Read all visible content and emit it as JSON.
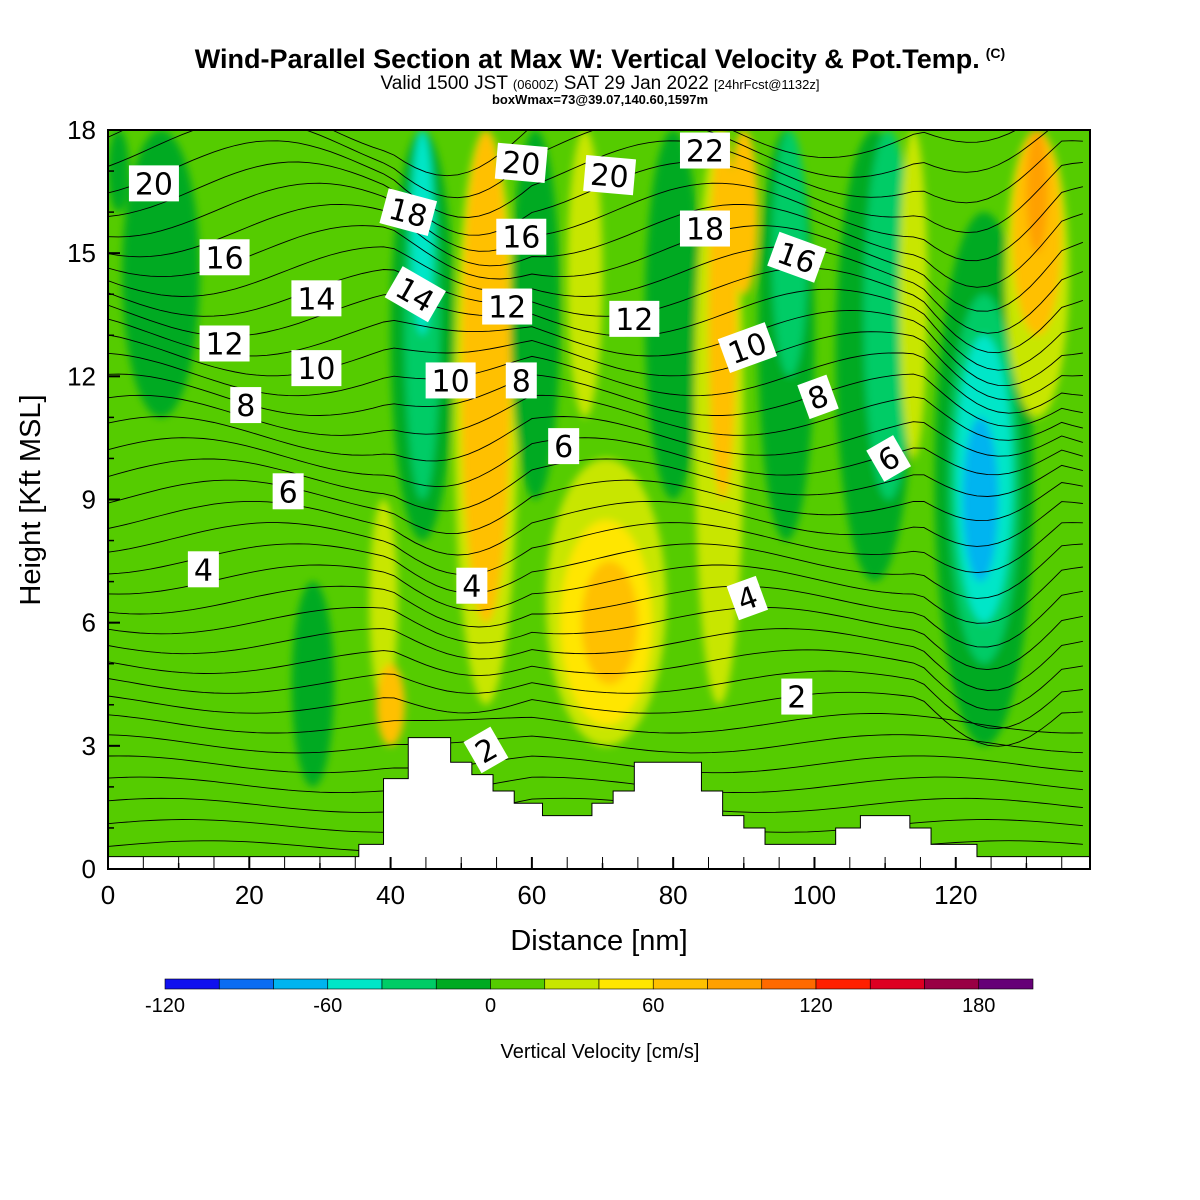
{
  "header": {
    "title": "Wind-Parallel Section at Max W: Vertical Velocity & Pot.Temp.",
    "copyright": "(C)",
    "valid_prefix": "Valid 1500 JST",
    "valid_utc": "(0600Z)",
    "valid_date": "SAT 29 Jan 2022",
    "forecast": "[24hrFcst@1132z]",
    "boxwmax": "boxWmax=73@39.07,140.60,1597m"
  },
  "chart_data": {
    "type": "heatmap",
    "xlabel": "Distance [nm]",
    "ylabel": "Height [Kft MSL]",
    "xlim": [
      0,
      139
    ],
    "ylim": [
      0,
      18
    ],
    "x_ticks": [
      0,
      20,
      40,
      60,
      80,
      100,
      120
    ],
    "y_ticks": [
      0,
      3,
      6,
      9,
      12,
      15,
      18
    ],
    "x_tick_labels": [
      "0",
      "20",
      "40",
      "60",
      "80",
      "100",
      "120"
    ],
    "y_tick_labels": [
      "0",
      "3",
      "6",
      "9",
      "12",
      "15",
      "18"
    ],
    "colorbar": {
      "label": "Vertical Velocity [cm/s]",
      "range": [
        -120,
        200
      ],
      "step": 20,
      "tick_values": [
        -120,
        -60,
        0,
        60,
        120,
        180
      ],
      "tick_labels": [
        "-120",
        "-60",
        "0",
        "60",
        "120",
        "180"
      ],
      "colors": [
        "#1010ee",
        "#0a6cf2",
        "#00b4f0",
        "#00e6c8",
        "#00cc66",
        "#00aa22",
        "#55cc00",
        "#c8e600",
        "#ffe600",
        "#ffc000",
        "#ffa000",
        "#ff6a00",
        "#ff2000",
        "#dd0022",
        "#990044",
        "#660077"
      ]
    },
    "vertical_velocity_cells": [
      {
        "x": [
          0,
          3
        ],
        "y": [
          16,
          18
        ],
        "w": -10
      },
      {
        "x": [
          2,
          13
        ],
        "y": [
          11,
          18
        ],
        "w": -10
      },
      {
        "x": [
          26,
          32
        ],
        "y": [
          2,
          7
        ],
        "w": -10
      },
      {
        "x": [
          37,
          41
        ],
        "y": [
          4,
          9
        ],
        "w": 30
      },
      {
        "x": [
          38,
          42
        ],
        "y": [
          3,
          5
        ],
        "w": 60
      },
      {
        "x": [
          40,
          49
        ],
        "y": [
          8,
          18
        ],
        "w": -10
      },
      {
        "x": [
          42,
          47
        ],
        "y": [
          9,
          18
        ],
        "w": -30
      },
      {
        "x": [
          43,
          46
        ],
        "y": [
          13,
          18
        ],
        "w": -50
      },
      {
        "x": [
          49,
          58
        ],
        "y": [
          4,
          18
        ],
        "w": 30
      },
      {
        "x": [
          50,
          57
        ],
        "y": [
          6,
          18
        ],
        "w": 60
      },
      {
        "x": [
          51,
          56
        ],
        "y": [
          10,
          18
        ],
        "w": 70
      },
      {
        "x": [
          57,
          64
        ],
        "y": [
          9,
          18
        ],
        "w": -10
      },
      {
        "x": [
          62,
          79
        ],
        "y": [
          3,
          10
        ],
        "w": 30
      },
      {
        "x": [
          64,
          77
        ],
        "y": [
          3.5,
          8.5
        ],
        "w": 50
      },
      {
        "x": [
          67,
          75
        ],
        "y": [
          4.5,
          7.5
        ],
        "w": 70
      },
      {
        "x": [
          65,
          70
        ],
        "y": [
          11,
          18
        ],
        "w": 30
      },
      {
        "x": [
          76,
          84
        ],
        "y": [
          9,
          18
        ],
        "w": -10
      },
      {
        "x": [
          83,
          90
        ],
        "y": [
          4,
          18
        ],
        "w": 30
      },
      {
        "x": [
          85,
          89
        ],
        "y": [
          9,
          18
        ],
        "w": 60
      },
      {
        "x": [
          88,
          92
        ],
        "y": [
          14,
          18
        ],
        "w": 70
      },
      {
        "x": [
          92,
          100
        ],
        "y": [
          8,
          18
        ],
        "w": -10
      },
      {
        "x": [
          94,
          99
        ],
        "y": [
          12,
          18
        ],
        "w": -30
      },
      {
        "x": [
          103,
          114
        ],
        "y": [
          7,
          18
        ],
        "w": -10
      },
      {
        "x": [
          107,
          114
        ],
        "y": [
          9,
          18
        ],
        "w": -30
      },
      {
        "x": [
          112,
          116
        ],
        "y": [
          10,
          18
        ],
        "w": 30
      },
      {
        "x": [
          117,
          131
        ],
        "y": [
          3,
          16
        ],
        "w": -10
      },
      {
        "x": [
          119,
          129
        ],
        "y": [
          5,
          14
        ],
        "w": -30
      },
      {
        "x": [
          120,
          128
        ],
        "y": [
          6,
          13
        ],
        "w": -50
      },
      {
        "x": [
          121,
          126
        ],
        "y": [
          7,
          11
        ],
        "w": -70
      },
      {
        "x": [
          127,
          136
        ],
        "y": [
          11,
          18
        ],
        "w": 30
      },
      {
        "x": [
          128,
          135
        ],
        "y": [
          13,
          18
        ],
        "w": 60
      },
      {
        "x": [
          130,
          133
        ],
        "y": [
          15,
          18
        ],
        "w": 80
      }
    ],
    "theta_contour_labels": [
      {
        "text": "20",
        "x": 6.5,
        "y": 16.7,
        "angle": 0
      },
      {
        "text": "16",
        "x": 16.5,
        "y": 14.9,
        "angle": 0
      },
      {
        "text": "12",
        "x": 16.5,
        "y": 12.8,
        "angle": 0
      },
      {
        "text": "8",
        "x": 19.5,
        "y": 11.3,
        "angle": 0
      },
      {
        "text": "14",
        "x": 29.5,
        "y": 13.9,
        "angle": 0
      },
      {
        "text": "10",
        "x": 29.5,
        "y": 12.2,
        "angle": 0
      },
      {
        "text": "6",
        "x": 25.5,
        "y": 9.2,
        "angle": 0
      },
      {
        "text": "4",
        "x": 13.5,
        "y": 7.3,
        "angle": 0
      },
      {
        "text": "18",
        "x": 42.5,
        "y": 16.0,
        "angle": 15
      },
      {
        "text": "14",
        "x": 43.5,
        "y": 14.0,
        "angle": 30
      },
      {
        "text": "10",
        "x": 48.5,
        "y": 11.9,
        "angle": 0
      },
      {
        "text": "20",
        "x": 58.5,
        "y": 17.2,
        "angle": 5
      },
      {
        "text": "16",
        "x": 58.5,
        "y": 15.4,
        "angle": 0
      },
      {
        "text": "12",
        "x": 56.5,
        "y": 13.7,
        "angle": 0
      },
      {
        "text": "8",
        "x": 58.5,
        "y": 11.9,
        "angle": 0
      },
      {
        "text": "6",
        "x": 64.5,
        "y": 10.3,
        "angle": 0
      },
      {
        "text": "4",
        "x": 51.5,
        "y": 6.9,
        "angle": 0
      },
      {
        "text": "2",
        "x": 53.5,
        "y": 2.9,
        "angle": -30
      },
      {
        "text": "20",
        "x": 71.0,
        "y": 16.9,
        "angle": 5
      },
      {
        "text": "12",
        "x": 74.5,
        "y": 13.4,
        "angle": 0
      },
      {
        "text": "22",
        "x": 84.5,
        "y": 17.5,
        "angle": 0
      },
      {
        "text": "18",
        "x": 84.5,
        "y": 15.6,
        "angle": 0
      },
      {
        "text": "10",
        "x": 90.5,
        "y": 12.7,
        "angle": -20
      },
      {
        "text": "16",
        "x": 97.5,
        "y": 14.9,
        "angle": 20
      },
      {
        "text": "8",
        "x": 100.5,
        "y": 11.5,
        "angle": -20
      },
      {
        "text": "6",
        "x": 110.5,
        "y": 10.0,
        "angle": -30
      },
      {
        "text": "4",
        "x": 90.5,
        "y": 6.6,
        "angle": -20
      },
      {
        "text": "2",
        "x": 97.5,
        "y": 4.2,
        "angle": 0
      }
    ],
    "terrain_profile": [
      [
        0,
        0.3
      ],
      [
        35.5,
        0.3
      ],
      [
        35.5,
        0.6
      ],
      [
        39,
        0.6
      ],
      [
        39,
        2.2
      ],
      [
        42.5,
        2.2
      ],
      [
        42.5,
        3.2
      ],
      [
        48.5,
        3.2
      ],
      [
        48.5,
        2.6
      ],
      [
        51.5,
        2.6
      ],
      [
        51.5,
        2.3
      ],
      [
        54.5,
        2.3
      ],
      [
        54.5,
        1.9
      ],
      [
        57.5,
        1.9
      ],
      [
        57.5,
        1.6
      ],
      [
        61.5,
        1.6
      ],
      [
        61.5,
        1.3
      ],
      [
        68.5,
        1.3
      ],
      [
        68.5,
        1.6
      ],
      [
        71.5,
        1.6
      ],
      [
        71.5,
        1.9
      ],
      [
        74.5,
        1.9
      ],
      [
        74.5,
        2.6
      ],
      [
        84,
        2.6
      ],
      [
        84,
        1.9
      ],
      [
        87,
        1.9
      ],
      [
        87,
        1.3
      ],
      [
        90,
        1.3
      ],
      [
        90,
        1.0
      ],
      [
        93,
        1.0
      ],
      [
        93,
        0.6
      ],
      [
        103,
        0.6
      ],
      [
        103,
        1.0
      ],
      [
        106.5,
        1.0
      ],
      [
        106.5,
        1.3
      ],
      [
        113.5,
        1.3
      ],
      [
        113.5,
        1.0
      ],
      [
        116.5,
        1.0
      ],
      [
        116.5,
        0.6
      ],
      [
        123,
        0.6
      ],
      [
        123,
        0.3
      ],
      [
        139,
        0.3
      ]
    ]
  }
}
